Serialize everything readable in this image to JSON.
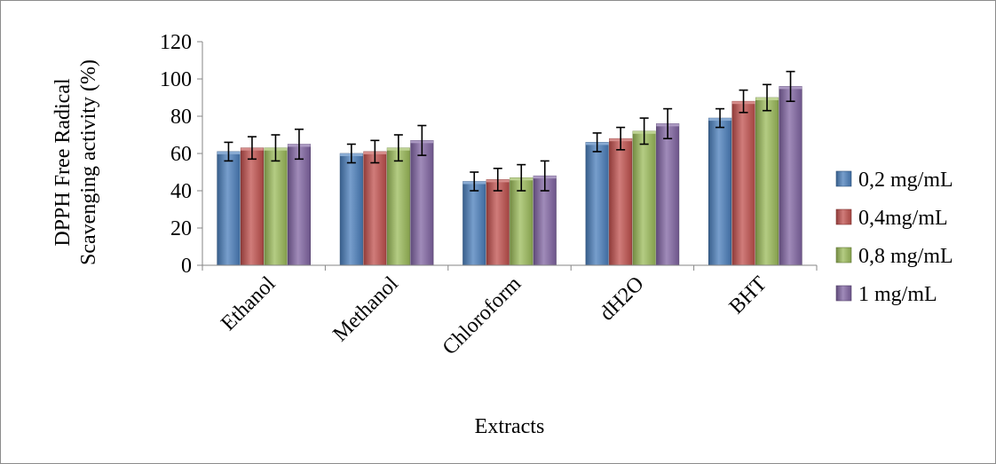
{
  "chart_data": {
    "type": "bar",
    "title": "",
    "xlabel": "Extracts",
    "ylabel": [
      "DPPH Free Radical",
      "Scavenging activity (%)"
    ],
    "ylim": [
      0,
      120
    ],
    "yticks": [
      0,
      20,
      40,
      60,
      80,
      100,
      120
    ],
    "grid": false,
    "legend_position": "right",
    "categories": [
      "Ethanol",
      "Methanol",
      "Chloroform",
      "dH2O",
      "BHT"
    ],
    "series": [
      {
        "name": "0,2 mg/mL",
        "color": "#4a7ebb",
        "values": [
          61,
          60,
          45,
          66,
          79
        ],
        "errors": [
          5,
          5,
          5,
          5,
          5
        ]
      },
      {
        "name": "0,4mg/mL",
        "color": "#c0504d",
        "values": [
          63,
          61,
          46,
          68,
          88
        ],
        "errors": [
          6,
          6,
          6,
          6,
          6
        ]
      },
      {
        "name": "0,8 mg/mL",
        "color": "#9bbb59",
        "values": [
          63,
          63,
          47,
          72,
          90
        ],
        "errors": [
          7,
          7,
          7,
          7,
          7
        ]
      },
      {
        "name": "1 mg/mL",
        "color": "#8064a2",
        "values": [
          65,
          67,
          48,
          76,
          96
        ],
        "errors": [
          8,
          8,
          8,
          8,
          8
        ]
      }
    ]
  }
}
